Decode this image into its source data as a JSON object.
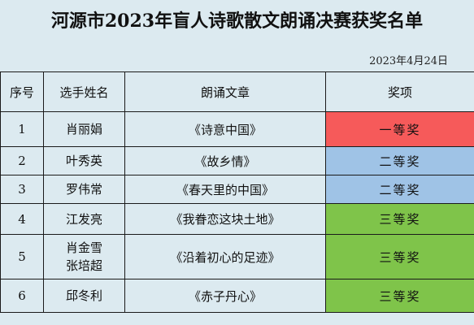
{
  "title": "河源市2023年盲人诗歌散文朗诵决赛获奖名单",
  "date": "2023年4月24日",
  "headers": [
    "序号",
    "选手姓名",
    "朗诵文章",
    "奖项"
  ],
  "rows": [
    {
      "no": "1",
      "names": [
        "肖丽娟"
      ],
      "work": "《诗意中国》",
      "prize": "一等奖",
      "prize_color": "#f65a5a"
    },
    {
      "no": "2",
      "names": [
        "叶秀英"
      ],
      "work": "《故乡情》",
      "prize": "二等奖",
      "prize_color": "#9fc3e6"
    },
    {
      "no": "3",
      "names": [
        "罗伟常"
      ],
      "work": "《春天里的中国》",
      "prize": "二等奖",
      "prize_color": "#9fc3e6"
    },
    {
      "no": "4",
      "names": [
        "江发亮"
      ],
      "work": "《我眷恋这块土地》",
      "prize": "三等奖",
      "prize_color": "#7fc44a"
    },
    {
      "no": "5",
      "names": [
        "肖金雪",
        "张培超"
      ],
      "work": "《沿着初心的足迹》",
      "prize": "三等奖",
      "prize_color": "#7fc44a"
    },
    {
      "no": "6",
      "names": [
        "邱冬利"
      ],
      "work": "《赤子丹心》",
      "prize": "三等奖",
      "prize_color": "#7fc44a"
    }
  ]
}
